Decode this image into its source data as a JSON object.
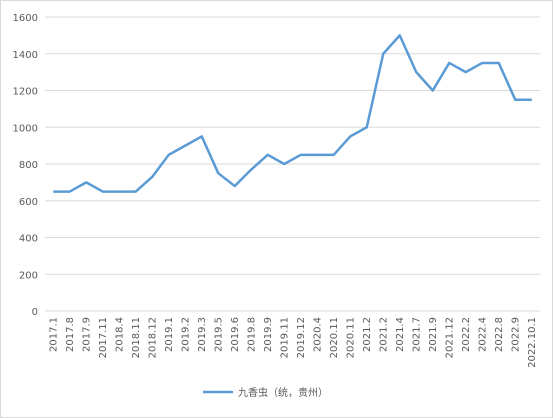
{
  "chart_data": {
    "type": "line",
    "categories": [
      "2017.1",
      "2017.8",
      "2017.9",
      "2017.11",
      "2018.4",
      "2018.11",
      "2018.12",
      "2019.1",
      "2019.2",
      "2019.3",
      "2019.5",
      "2019.6",
      "2019.8",
      "2019.9",
      "2019.11",
      "2019.12",
      "2020.4",
      "2020.11",
      "2020.11",
      "2021.2",
      "2021.2",
      "2021.4",
      "2021.7",
      "2021.9",
      "2021.12",
      "2022.2",
      "2022.4",
      "2022.8",
      "2022.9",
      "2022.10.1"
    ],
    "series": [
      {
        "name": "九香虫（统，贵州）",
        "color": "#5b9bd5",
        "values": [
          650,
          650,
          700,
          650,
          650,
          650,
          730,
          850,
          900,
          950,
          750,
          680,
          770,
          850,
          800,
          850,
          850,
          850,
          950,
          1000,
          1400,
          1500,
          1300,
          1200,
          1350,
          1300,
          1350,
          1350,
          1150,
          1150
        ]
      }
    ],
    "ylim": [
      0,
      1600
    ],
    "yticks": [
      0,
      200,
      400,
      600,
      800,
      1000,
      1200,
      1400,
      1600
    ],
    "grid": true,
    "legend": "bottom"
  }
}
